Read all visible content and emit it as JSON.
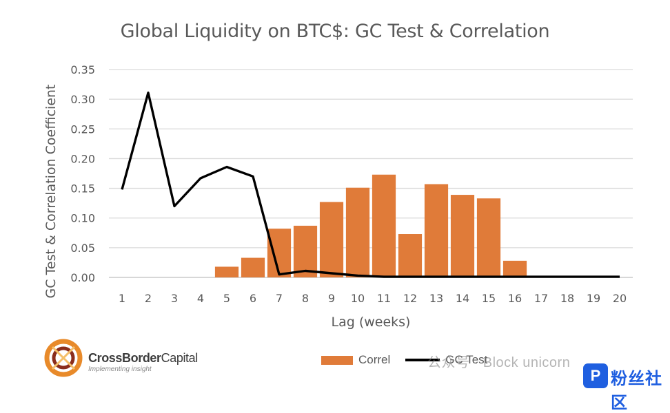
{
  "chart_data": {
    "type": "bar",
    "title": "Global Liquidity on BTC$: GC Test & Correlation",
    "xlabel": "Lag (weeks)",
    "ylabel": "GC Test & Correlation Coefficient",
    "categories": [
      "1",
      "2",
      "3",
      "4",
      "5",
      "6",
      "7",
      "8",
      "9",
      "10",
      "11",
      "12",
      "13",
      "14",
      "15",
      "16",
      "17",
      "18",
      "19",
      "20"
    ],
    "ylim": [
      0,
      0.35
    ],
    "yticks": [
      "0.00",
      "0.05",
      "0.10",
      "0.15",
      "0.20",
      "0.25",
      "0.30",
      "0.35"
    ],
    "grid": true,
    "legend_position": "bottom-right",
    "series": [
      {
        "name": "Correl",
        "type": "bar",
        "color": "#e07b39",
        "values": [
          null,
          null,
          null,
          null,
          0.018,
          0.033,
          0.082,
          0.087,
          0.127,
          0.151,
          0.173,
          0.073,
          0.157,
          0.139,
          0.133,
          0.028,
          null,
          null,
          null,
          null
        ]
      },
      {
        "name": "GC Test",
        "type": "line",
        "color": "#000000",
        "values": [
          0.148,
          0.311,
          0.12,
          0.167,
          0.186,
          0.17,
          0.005,
          0.011,
          0.007,
          0.003,
          0.001,
          0.001,
          0.001,
          0.001,
          0.001,
          0.001,
          0.001,
          0.001,
          0.001,
          0.001
        ]
      }
    ]
  },
  "brand": {
    "name_bold": "CrossBorder",
    "name_light": "Capital",
    "tagline": "Implementing insight"
  },
  "watermark": {
    "text": "公众号 · Block unicorn",
    "badge_text": "粉丝社区"
  }
}
